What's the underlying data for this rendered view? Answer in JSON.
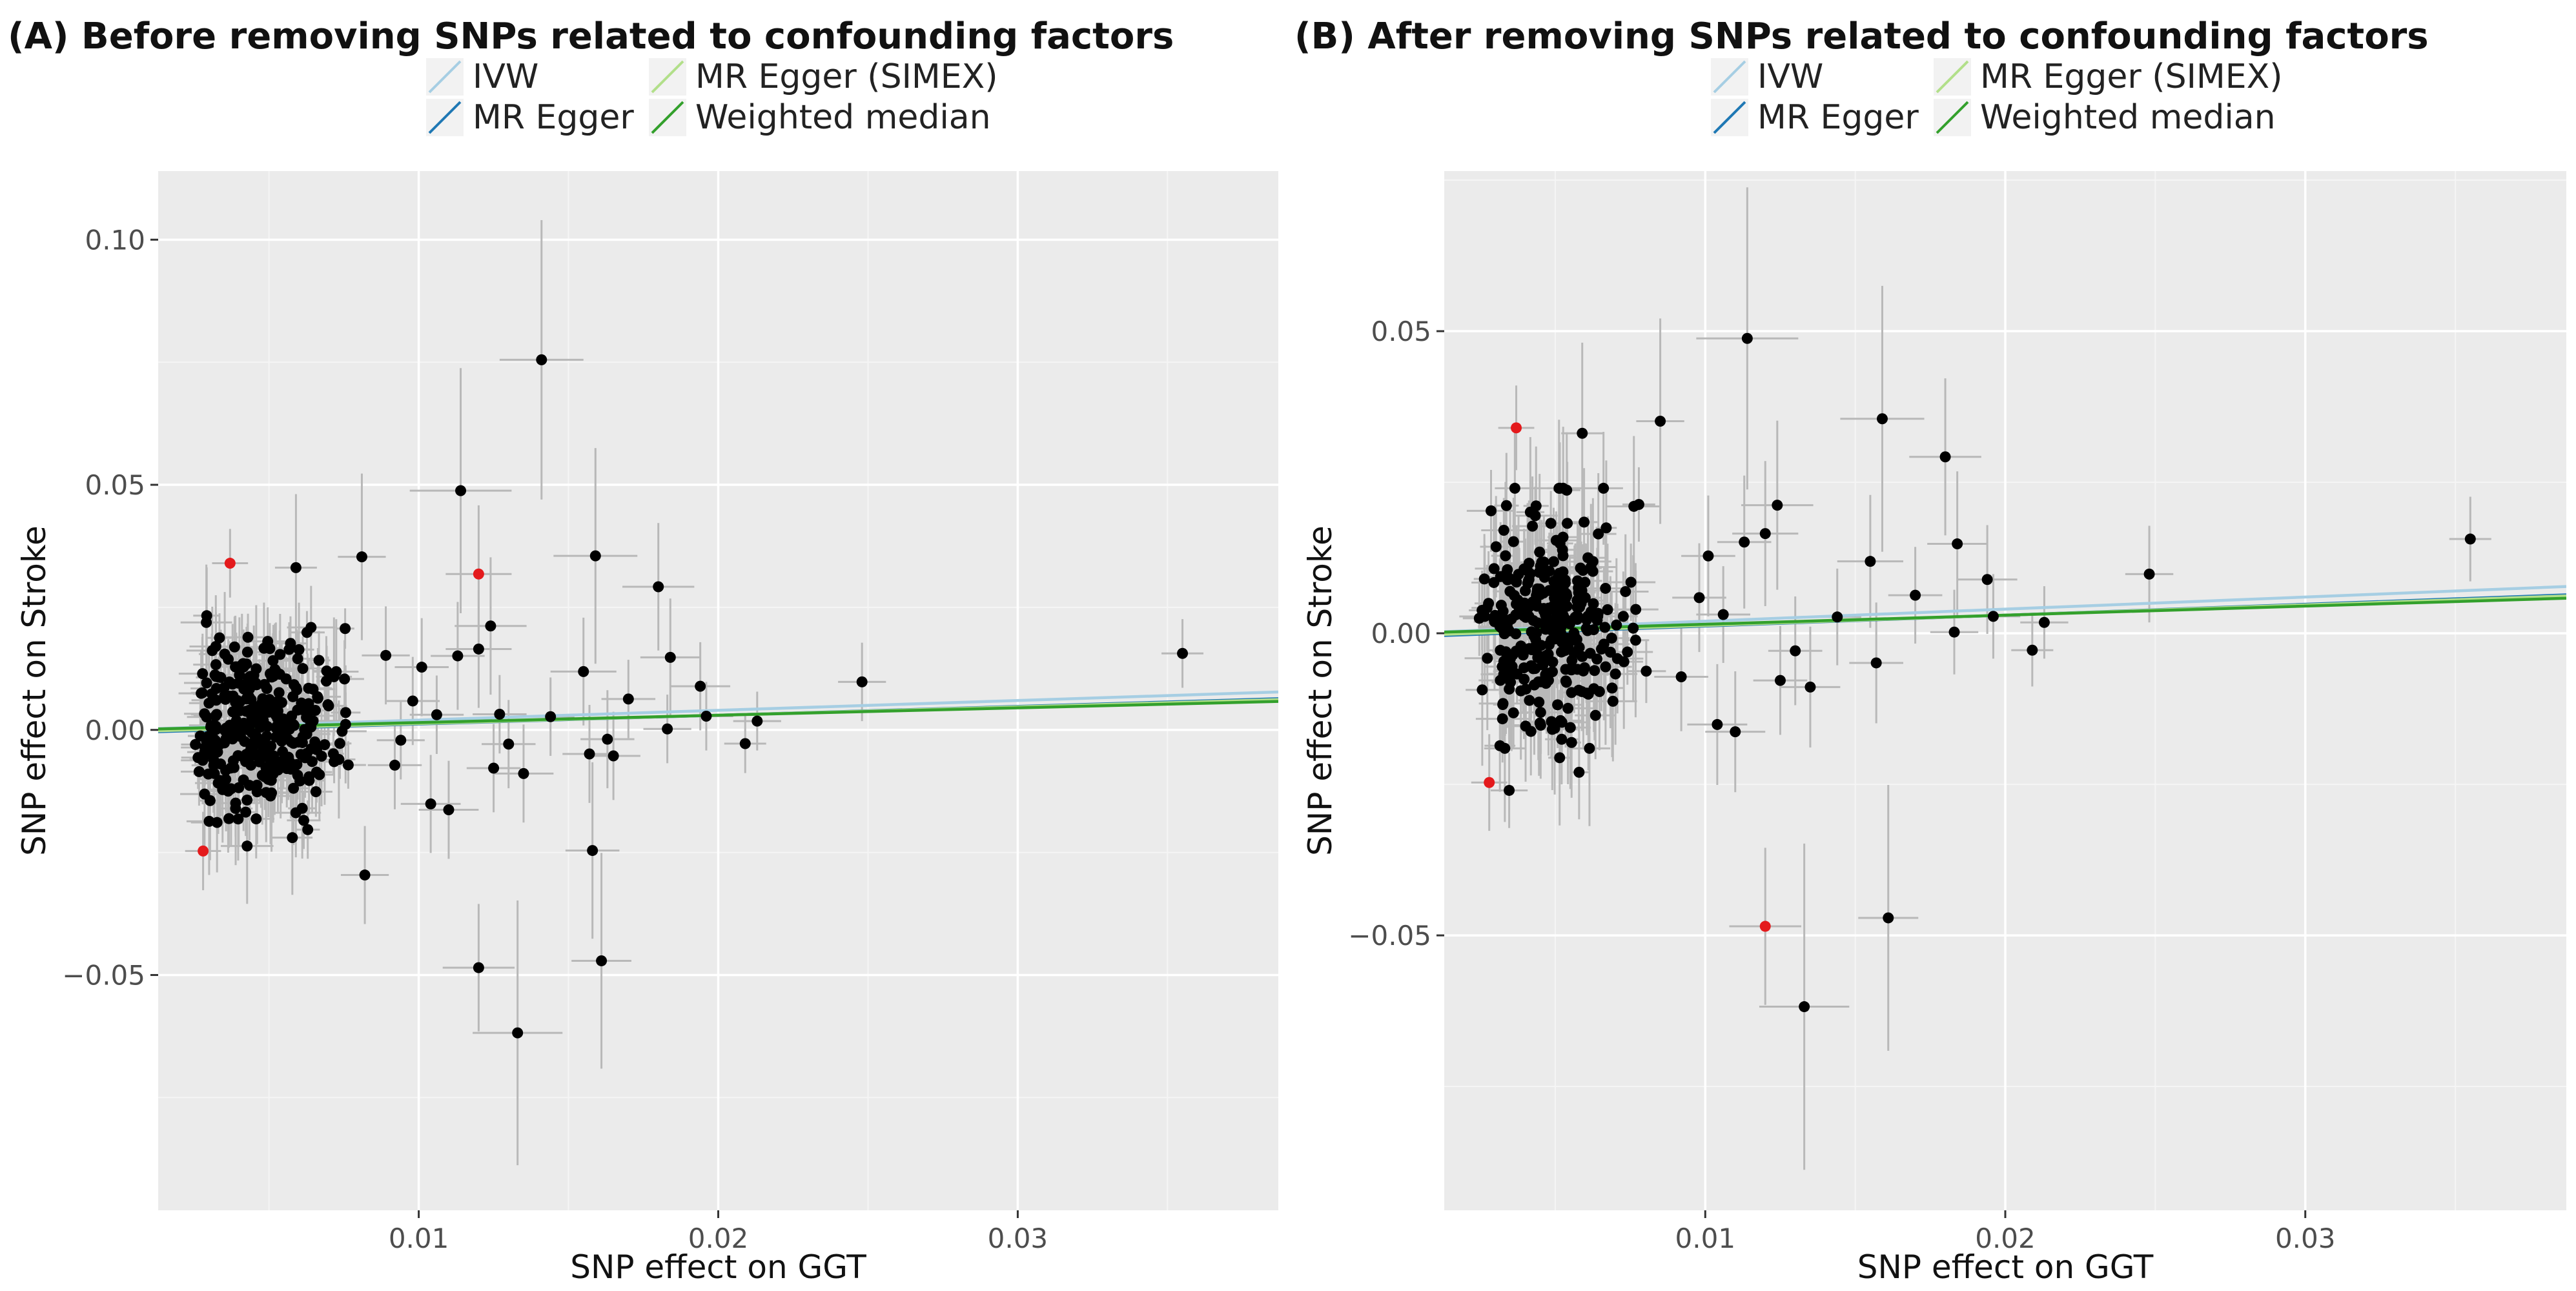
{
  "colors": {
    "panel_bg": "#ebebeb",
    "grid_major": "#ffffff",
    "grid_minor": "#f5f5f5",
    "errorbar": "#b8b8b8",
    "point": "#000000",
    "outlier": "#e41a1c",
    "ivw": "#a6cee3",
    "mr_egger": "#1f78b4",
    "mr_egger_simex": "#b2df8a",
    "weighted_median": "#33a02c"
  },
  "chart_data": [
    {
      "type": "scatter",
      "panel": "A",
      "title": "(A) Before removing SNPs related to confounding factors",
      "xlabel": "SNP effect on GGT",
      "ylabel": "SNP effect on Stroke",
      "xlim": [
        0.0013,
        0.0387
      ],
      "ylim": [
        -0.098,
        0.114
      ],
      "xticks": [
        0.01,
        0.02,
        0.03
      ],
      "xtick_labels": [
        "0.01",
        "0.02",
        "0.03"
      ],
      "yticks": [
        -0.05,
        0.0,
        0.05,
        0.1
      ],
      "ytick_labels": [
        "−0.05",
        "0.00",
        "0.05",
        "0.10"
      ],
      "grid": true,
      "legend": {
        "position": "top",
        "entries": [
          {
            "label": "IVW",
            "color_key": "ivw"
          },
          {
            "label": "MR Egger",
            "color_key": "mr_egger"
          },
          {
            "label": "MR Egger (SIMEX)",
            "color_key": "mr_egger_simex"
          },
          {
            "label": "Weighted median",
            "color_key": "weighted_median"
          }
        ]
      },
      "lines": [
        {
          "name": "IVW",
          "color_key": "ivw",
          "intercept": 0,
          "slope": 0.2
        },
        {
          "name": "MR Egger",
          "color_key": "mr_egger",
          "intercept": -0.0006,
          "slope": 0.18
        },
        {
          "name": "MR Egger (SIMEX)",
          "color_key": "mr_egger_simex",
          "intercept": -0.0004,
          "slope": 0.17
        },
        {
          "name": "Weighted median",
          "color_key": "weighted_median",
          "intercept": 0,
          "slope": 0.15
        }
      ],
      "points": [
        {
          "x": 0.0141,
          "y": 0.0755,
          "xerr": 0.0014,
          "yerr": 0.0285
        },
        {
          "x": 0.0114,
          "y": 0.0488,
          "xerr": 0.0017,
          "yerr": 0.025
        },
        {
          "x": 0.0159,
          "y": 0.0355,
          "xerr": 0.0014,
          "yerr": 0.022
        },
        {
          "x": 0.0081,
          "y": 0.0353,
          "xerr": 0.0008,
          "yerr": 0.017
        },
        {
          "x": 0.018,
          "y": 0.0292,
          "xerr": 0.0012,
          "yerr": 0.013
        },
        {
          "x": 0.0059,
          "y": 0.0331,
          "xerr": 0.0007,
          "yerr": 0.015
        },
        {
          "x": 0.0124,
          "y": 0.0212,
          "xerr": 0.0012,
          "yerr": 0.014
        },
        {
          "x": 0.0184,
          "y": 0.0148,
          "xerr": 0.001,
          "yerr": 0.012
        },
        {
          "x": 0.0155,
          "y": 0.0119,
          "xerr": 0.0011,
          "yerr": 0.011
        },
        {
          "x": 0.0194,
          "y": 0.0089,
          "xerr": 0.001,
          "yerr": 0.009
        },
        {
          "x": 0.017,
          "y": 0.0063,
          "xerr": 0.0009,
          "yerr": 0.008
        },
        {
          "x": 0.0163,
          "y": -0.0019,
          "xerr": 0.0009,
          "yerr": 0.01
        },
        {
          "x": 0.0183,
          "y": 0.0002,
          "xerr": 0.0008,
          "yerr": 0.007
        },
        {
          "x": 0.0196,
          "y": 0.0028,
          "xerr": 0.0009,
          "yerr": 0.007
        },
        {
          "x": 0.0213,
          "y": 0.0018,
          "xerr": 0.0008,
          "yerr": 0.006
        },
        {
          "x": 0.0209,
          "y": -0.0028,
          "xerr": 0.0007,
          "yerr": 0.006
        },
        {
          "x": 0.0248,
          "y": 0.0098,
          "xerr": 0.0008,
          "yerr": 0.008
        },
        {
          "x": 0.0355,
          "y": 0.0156,
          "xerr": 0.0007,
          "yerr": 0.007
        },
        {
          "x": 0.0144,
          "y": 0.0027,
          "xerr": 0.0008,
          "yerr": 0.008
        },
        {
          "x": 0.0135,
          "y": -0.0089,
          "xerr": 0.001,
          "yerr": 0.01
        },
        {
          "x": 0.0157,
          "y": -0.0049,
          "xerr": 0.0009,
          "yerr": 0.01
        },
        {
          "x": 0.0165,
          "y": -0.0053,
          "xerr": 0.0009,
          "yerr": 0.009
        },
        {
          "x": 0.0158,
          "y": -0.0246,
          "xerr": 0.0009,
          "yerr": 0.018
        },
        {
          "x": 0.0161,
          "y": -0.0471,
          "xerr": 0.001,
          "yerr": 0.022
        },
        {
          "x": 0.012,
          "y": -0.0485,
          "xerr": 0.0012,
          "yerr": 0.013
        },
        {
          "x": 0.0133,
          "y": -0.0618,
          "xerr": 0.0015,
          "yerr": 0.027
        },
        {
          "x": 0.0082,
          "y": -0.0296,
          "xerr": 0.0008,
          "yerr": 0.01
        },
        {
          "x": 0.0104,
          "y": -0.0151,
          "xerr": 0.001,
          "yerr": 0.01
        },
        {
          "x": 0.011,
          "y": -0.0163,
          "xerr": 0.001,
          "yerr": 0.01
        },
        {
          "x": 0.0125,
          "y": -0.0078,
          "xerr": 0.0009,
          "yerr": 0.009
        },
        {
          "x": 0.012,
          "y": 0.0165,
          "xerr": 0.0011,
          "yerr": 0.012
        },
        {
          "x": 0.0113,
          "y": 0.0151,
          "xerr": 0.0009,
          "yerr": 0.011
        },
        {
          "x": 0.013,
          "y": -0.0029,
          "xerr": 0.0009,
          "yerr": 0.009
        },
        {
          "x": 0.0098,
          "y": 0.0059,
          "xerr": 0.0009,
          "yerr": 0.009
        },
        {
          "x": 0.0092,
          "y": -0.0072,
          "xerr": 0.0009,
          "yerr": 0.009
        },
        {
          "x": 0.0101,
          "y": 0.0128,
          "xerr": 0.0009,
          "yerr": 0.01
        },
        {
          "x": 0.0089,
          "y": 0.0152,
          "xerr": 0.0008,
          "yerr": 0.01
        },
        {
          "x": 0.0106,
          "y": 0.0031,
          "xerr": 0.0009,
          "yerr": 0.008
        },
        {
          "x": 0.0094,
          "y": -0.0021,
          "xerr": 0.0008,
          "yerr": 0.008
        },
        {
          "x": 0.0127,
          "y": 0.0032,
          "xerr": 0.0009,
          "yerr": 0.008
        },
        {
          "x": 0.0037,
          "y": 0.034,
          "xerr": 0.0006,
          "yerr": 0.007,
          "outlier": true
        },
        {
          "x": 0.0028,
          "y": -0.0247,
          "xerr": 0.0006,
          "yerr": 0.008,
          "outlier": true
        },
        {
          "x": 0.012,
          "y": 0.0318,
          "xerr": 0.0011,
          "yerr": 0.014,
          "outlier": true
        }
      ],
      "cluster": {
        "x_range": [
          0.0024,
          0.0094
        ],
        "y_mean": 0.0005,
        "y_sd": 0.0085,
        "n": 330,
        "seed": 11
      }
    },
    {
      "type": "scatter",
      "panel": "B",
      "title": "(B) After removing SNPs related to confounding factors",
      "xlabel": "SNP effect on GGT",
      "ylabel": "SNP effect on Stroke",
      "xlim": [
        0.0013,
        0.0387
      ],
      "ylim": [
        -0.0955,
        0.0765
      ],
      "xticks": [
        0.01,
        0.02,
        0.03
      ],
      "xtick_labels": [
        "0.01",
        "0.02",
        "0.03"
      ],
      "yticks": [
        -0.05,
        0.0,
        0.05
      ],
      "ytick_labels": [
        "−0.05",
        "0.00",
        "0.05"
      ],
      "grid": true,
      "legend": {
        "position": "top",
        "entries": [
          {
            "label": "IVW",
            "color_key": "ivw"
          },
          {
            "label": "MR Egger",
            "color_key": "mr_egger"
          },
          {
            "label": "MR Egger (SIMEX)",
            "color_key": "mr_egger_simex"
          },
          {
            "label": "Weighted median",
            "color_key": "weighted_median"
          }
        ]
      },
      "lines": [
        {
          "name": "IVW",
          "color_key": "ivw",
          "intercept": 0,
          "slope": 0.2
        },
        {
          "name": "MR Egger",
          "color_key": "mr_egger",
          "intercept": -0.0006,
          "slope": 0.18
        },
        {
          "name": "MR Egger (SIMEX)",
          "color_key": "mr_egger_simex",
          "intercept": -0.0004,
          "slope": 0.17
        },
        {
          "name": "Weighted median",
          "color_key": "weighted_median",
          "intercept": 0,
          "slope": 0.15
        }
      ],
      "points": [
        {
          "x": 0.0114,
          "y": 0.0488,
          "xerr": 0.0017,
          "yerr": 0.025
        },
        {
          "x": 0.0159,
          "y": 0.0355,
          "xerr": 0.0014,
          "yerr": 0.022
        },
        {
          "x": 0.0085,
          "y": 0.0351,
          "xerr": 0.0008,
          "yerr": 0.017
        },
        {
          "x": 0.018,
          "y": 0.0292,
          "xerr": 0.0012,
          "yerr": 0.013
        },
        {
          "x": 0.0059,
          "y": 0.0331,
          "xerr": 0.0007,
          "yerr": 0.015
        },
        {
          "x": 0.0124,
          "y": 0.0212,
          "xerr": 0.0012,
          "yerr": 0.014
        },
        {
          "x": 0.0184,
          "y": 0.0148,
          "xerr": 0.001,
          "yerr": 0.012
        },
        {
          "x": 0.0155,
          "y": 0.0119,
          "xerr": 0.0011,
          "yerr": 0.011
        },
        {
          "x": 0.0194,
          "y": 0.0089,
          "xerr": 0.001,
          "yerr": 0.009
        },
        {
          "x": 0.017,
          "y": 0.0063,
          "xerr": 0.0009,
          "yerr": 0.008
        },
        {
          "x": 0.0183,
          "y": 0.0002,
          "xerr": 0.0008,
          "yerr": 0.007
        },
        {
          "x": 0.0196,
          "y": 0.0028,
          "xerr": 0.0009,
          "yerr": 0.007
        },
        {
          "x": 0.0213,
          "y": 0.0018,
          "xerr": 0.0008,
          "yerr": 0.006
        },
        {
          "x": 0.0209,
          "y": -0.0028,
          "xerr": 0.0007,
          "yerr": 0.006
        },
        {
          "x": 0.0248,
          "y": 0.0098,
          "xerr": 0.0008,
          "yerr": 0.008
        },
        {
          "x": 0.0355,
          "y": 0.0156,
          "xerr": 0.0007,
          "yerr": 0.007
        },
        {
          "x": 0.0144,
          "y": 0.0027,
          "xerr": 0.0008,
          "yerr": 0.008
        },
        {
          "x": 0.0135,
          "y": -0.0089,
          "xerr": 0.001,
          "yerr": 0.01
        },
        {
          "x": 0.0157,
          "y": -0.0049,
          "xerr": 0.0009,
          "yerr": 0.01
        },
        {
          "x": 0.0161,
          "y": -0.0471,
          "xerr": 0.001,
          "yerr": 0.022
        },
        {
          "x": 0.0133,
          "y": -0.0618,
          "xerr": 0.0015,
          "yerr": 0.027
        },
        {
          "x": 0.0104,
          "y": -0.0151,
          "xerr": 0.001,
          "yerr": 0.01
        },
        {
          "x": 0.011,
          "y": -0.0163,
          "xerr": 0.001,
          "yerr": 0.01
        },
        {
          "x": 0.0125,
          "y": -0.0078,
          "xerr": 0.0009,
          "yerr": 0.009
        },
        {
          "x": 0.012,
          "y": 0.0165,
          "xerr": 0.0011,
          "yerr": 0.012
        },
        {
          "x": 0.0113,
          "y": 0.0151,
          "xerr": 0.0009,
          "yerr": 0.011
        },
        {
          "x": 0.013,
          "y": -0.0029,
          "xerr": 0.0009,
          "yerr": 0.009
        },
        {
          "x": 0.0098,
          "y": 0.0059,
          "xerr": 0.0009,
          "yerr": 0.009
        },
        {
          "x": 0.0092,
          "y": -0.0072,
          "xerr": 0.0009,
          "yerr": 0.009
        },
        {
          "x": 0.0101,
          "y": 0.0128,
          "xerr": 0.0009,
          "yerr": 0.01
        },
        {
          "x": 0.0106,
          "y": 0.0031,
          "xerr": 0.0009,
          "yerr": 0.008
        },
        {
          "x": 0.0037,
          "y": 0.034,
          "xerr": 0.0006,
          "yerr": 0.007,
          "outlier": true
        },
        {
          "x": 0.0028,
          "y": -0.0247,
          "xerr": 0.0006,
          "yerr": 0.008,
          "outlier": true
        },
        {
          "x": 0.012,
          "y": -0.0485,
          "xerr": 0.0012,
          "yerr": 0.013,
          "outlier": true
        }
      ],
      "cluster": {
        "x_range": [
          0.0024,
          0.0094
        ],
        "y_mean": 0.0005,
        "y_sd": 0.0085,
        "n": 320,
        "seed": 23
      }
    }
  ]
}
